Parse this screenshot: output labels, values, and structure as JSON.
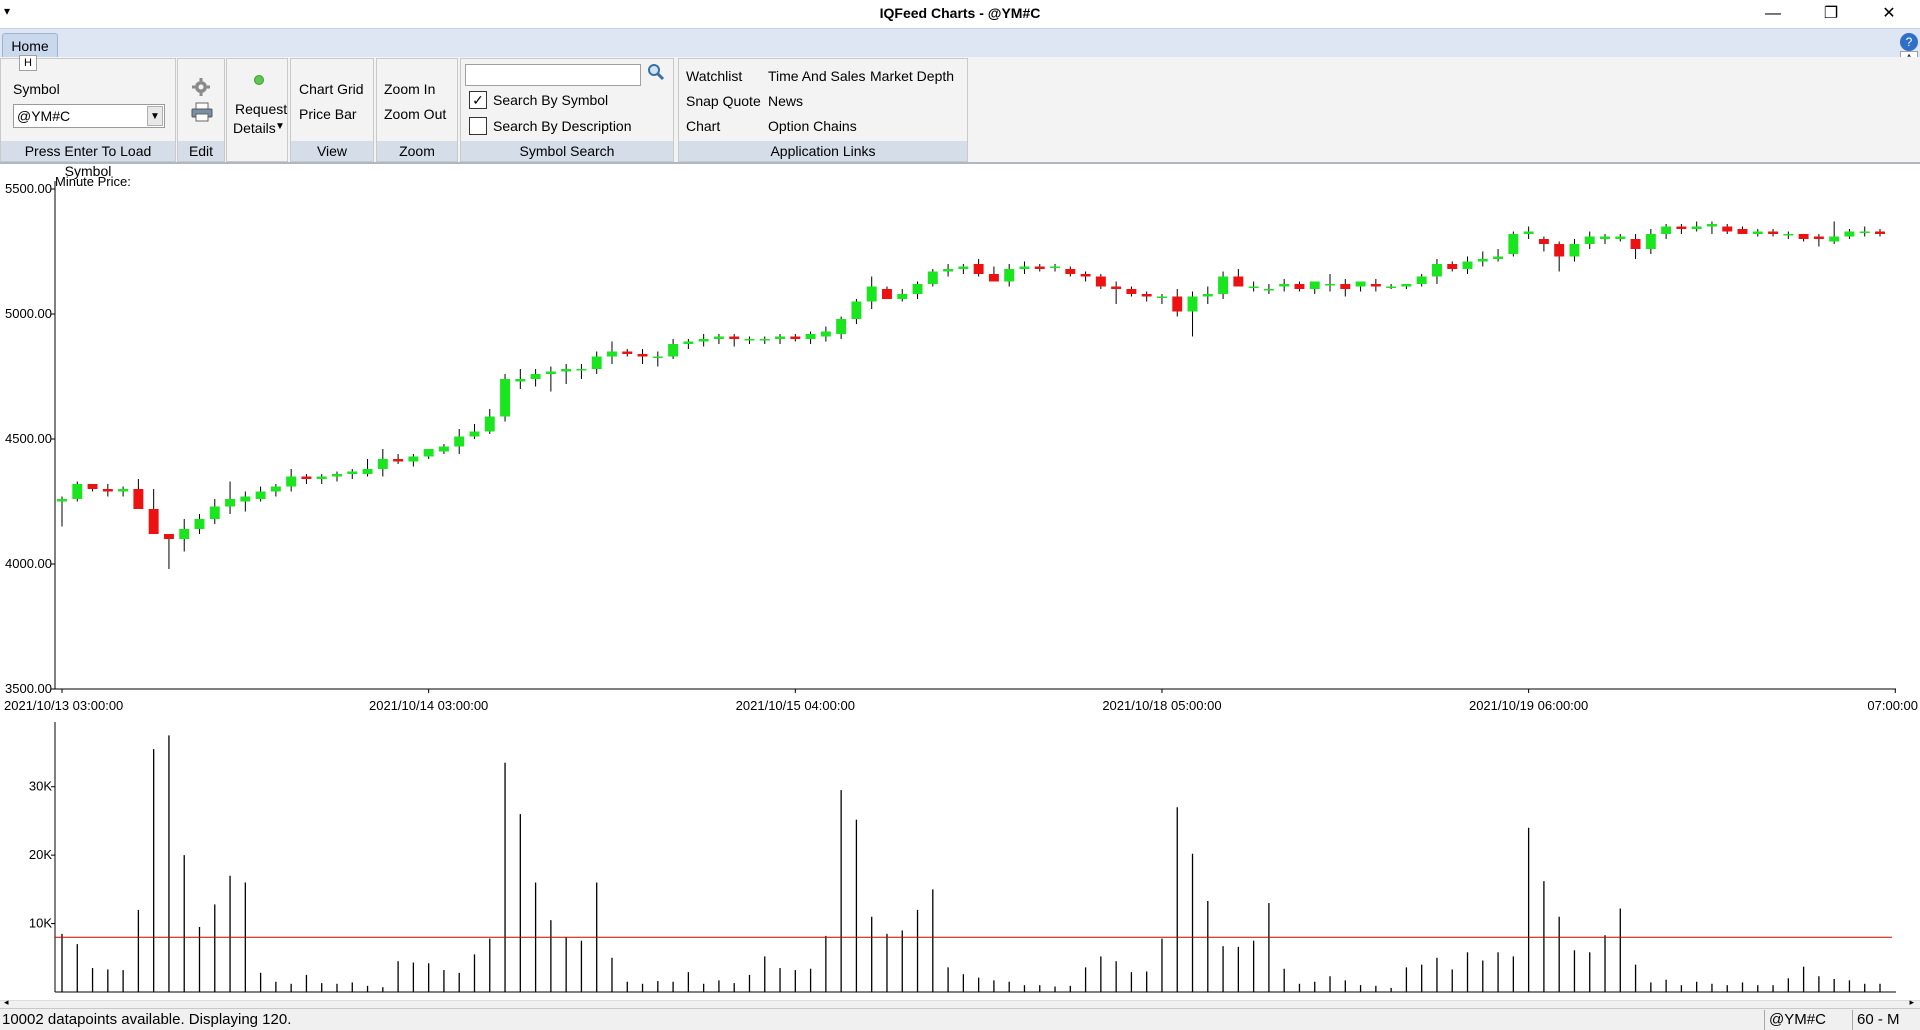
{
  "window": {
    "title": "IQFeed Charts - @YM#C",
    "sysmenu_glyph": "▾",
    "minimize_glyph": "—",
    "maximize_glyph": "❐",
    "close_glyph": "✕"
  },
  "tabs": {
    "home_label": "Home",
    "help_glyph": "?",
    "shortcut_a": "A"
  },
  "ribbon": {
    "symbol_group": {
      "key_tip": "H",
      "label": "Symbol",
      "value": "@YM#C",
      "caption": "Press Enter To Load Symbol"
    },
    "edit_group": {
      "caption": "Edit",
      "settings_icon": "gear-icon",
      "print_icon": "printer-icon"
    },
    "request_group": {
      "line1": "Request",
      "line2": "Details"
    },
    "view_group": {
      "chart_grid": "Chart Grid",
      "price_bar": "Price Bar",
      "caption": "View"
    },
    "zoom_group": {
      "zoom_in": "Zoom In",
      "zoom_out": "Zoom Out",
      "caption": "Zoom"
    },
    "search_group": {
      "search_value": "",
      "by_symbol": "Search By Symbol",
      "by_symbol_checked": true,
      "by_description": "Search By Description",
      "by_description_checked": false,
      "caption": "Symbol Search"
    },
    "links_group": {
      "watchlist": "Watchlist",
      "time_and_sales": "Time And Sales",
      "market_depth": "Market Depth",
      "snap_quote": "Snap Quote",
      "news": "News",
      "chart": "Chart",
      "option_chains": "Option Chains",
      "caption": "Application Links"
    }
  },
  "colors": {
    "up": "#19e61e",
    "down": "#ee1111",
    "avg_line": "#cc0000"
  },
  "chart_data": [
    {
      "type": "candlestick",
      "title": "Minute Price:",
      "y_ticks": [
        "5500.00",
        "5000.00",
        "4500.00",
        "4000.00",
        "3500.00"
      ],
      "ylim": [
        3500,
        5500
      ],
      "x_tick_labels": [
        "2021/10/13 03:00:00",
        "2021/10/14 03:00:00",
        "2021/10/15 04:00:00",
        "2021/10/18 05:00:00",
        "2021/10/19 06:00:00",
        "07:00:00"
      ],
      "x_tick_index": [
        0,
        24,
        48,
        72,
        96,
        120
      ],
      "ohlc": [
        [
          4250,
          4270,
          4150,
          4260
        ],
        [
          4260,
          4330,
          4250,
          4320
        ],
        [
          4320,
          4320,
          4290,
          4300
        ],
        [
          4300,
          4320,
          4270,
          4290
        ],
        [
          4290,
          4310,
          4270,
          4300
        ],
        [
          4300,
          4340,
          4230,
          4220
        ],
        [
          4220,
          4300,
          4120,
          4120
        ],
        [
          4120,
          4120,
          3980,
          4100
        ],
        [
          4100,
          4180,
          4050,
          4140
        ],
        [
          4140,
          4200,
          4120,
          4180
        ],
        [
          4180,
          4260,
          4160,
          4230
        ],
        [
          4230,
          4330,
          4200,
          4260
        ],
        [
          4250,
          4290,
          4210,
          4270
        ],
        [
          4260,
          4310,
          4250,
          4290
        ],
        [
          4290,
          4320,
          4270,
          4310
        ],
        [
          4310,
          4380,
          4290,
          4350
        ],
        [
          4350,
          4360,
          4320,
          4340
        ],
        [
          4340,
          4360,
          4320,
          4350
        ],
        [
          4350,
          4370,
          4330,
          4360
        ],
        [
          4360,
          4380,
          4340,
          4370
        ],
        [
          4360,
          4420,
          4350,
          4380
        ],
        [
          4380,
          4460,
          4350,
          4420
        ],
        [
          4420,
          4440,
          4400,
          4410
        ],
        [
          4410,
          4440,
          4390,
          4430
        ],
        [
          4430,
          4460,
          4420,
          4460
        ],
        [
          4450,
          4480,
          4440,
          4470
        ],
        [
          4470,
          4540,
          4440,
          4510
        ],
        [
          4510,
          4560,
          4500,
          4530
        ],
        [
          4530,
          4620,
          4520,
          4590
        ],
        [
          4590,
          4760,
          4570,
          4740
        ],
        [
          4730,
          4780,
          4700,
          4740
        ],
        [
          4740,
          4780,
          4710,
          4760
        ],
        [
          4760,
          4790,
          4690,
          4770
        ],
        [
          4770,
          4800,
          4720,
          4780
        ],
        [
          4780,
          4800,
          4740,
          4780
        ],
        [
          4780,
          4850,
          4760,
          4830
        ],
        [
          4830,
          4890,
          4800,
          4850
        ],
        [
          4850,
          4860,
          4830,
          4840
        ],
        [
          4840,
          4860,
          4800,
          4830
        ],
        [
          4830,
          4850,
          4790,
          4830
        ],
        [
          4830,
          4900,
          4820,
          4880
        ],
        [
          4880,
          4900,
          4860,
          4890
        ],
        [
          4890,
          4920,
          4870,
          4900
        ],
        [
          4900,
          4920,
          4880,
          4910
        ],
        [
          4910,
          4920,
          4870,
          4900
        ],
        [
          4900,
          4910,
          4880,
          4900
        ],
        [
          4900,
          4910,
          4880,
          4900
        ],
        [
          4900,
          4920,
          4880,
          4910
        ],
        [
          4910,
          4920,
          4890,
          4900
        ],
        [
          4900,
          4930,
          4880,
          4920
        ],
        [
          4910,
          4950,
          4890,
          4930
        ],
        [
          4920,
          4990,
          4900,
          4980
        ],
        [
          4980,
          5060,
          4960,
          5050
        ],
        [
          5050,
          5150,
          5020,
          5110
        ],
        [
          5100,
          5110,
          5060,
          5060
        ],
        [
          5060,
          5100,
          5050,
          5080
        ],
        [
          5080,
          5130,
          5060,
          5120
        ],
        [
          5120,
          5180,
          5110,
          5170
        ],
        [
          5170,
          5200,
          5150,
          5180
        ],
        [
          5180,
          5200,
          5160,
          5190
        ],
        [
          5200,
          5220,
          5150,
          5160
        ],
        [
          5160,
          5190,
          5130,
          5130
        ],
        [
          5130,
          5200,
          5110,
          5180
        ],
        [
          5180,
          5210,
          5160,
          5190
        ],
        [
          5190,
          5200,
          5170,
          5180
        ],
        [
          5190,
          5200,
          5170,
          5190
        ],
        [
          5180,
          5190,
          5150,
          5160
        ],
        [
          5160,
          5170,
          5130,
          5150
        ],
        [
          5150,
          5160,
          5100,
          5110
        ],
        [
          5110,
          5130,
          5040,
          5100
        ],
        [
          5100,
          5110,
          5070,
          5080
        ],
        [
          5080,
          5090,
          5050,
          5070
        ],
        [
          5070,
          5080,
          5040,
          5070
        ],
        [
          5070,
          5100,
          4990,
          5010
        ],
        [
          5010,
          5090,
          4910,
          5070
        ],
        [
          5070,
          5110,
          5040,
          5080
        ],
        [
          5080,
          5170,
          5060,
          5150
        ],
        [
          5150,
          5180,
          5120,
          5110
        ],
        [
          5110,
          5130,
          5090,
          5110
        ],
        [
          5100,
          5120,
          5080,
          5100
        ],
        [
          5110,
          5140,
          5090,
          5120
        ],
        [
          5120,
          5130,
          5090,
          5100
        ],
        [
          5100,
          5130,
          5080,
          5130
        ],
        [
          5120,
          5160,
          5090,
          5120
        ],
        [
          5120,
          5140,
          5070,
          5100
        ],
        [
          5110,
          5130,
          5090,
          5130
        ],
        [
          5120,
          5140,
          5090,
          5110
        ],
        [
          5110,
          5120,
          5100,
          5110
        ],
        [
          5110,
          5120,
          5100,
          5120
        ],
        [
          5120,
          5160,
          5110,
          5150
        ],
        [
          5150,
          5220,
          5120,
          5200
        ],
        [
          5200,
          5210,
          5170,
          5180
        ],
        [
          5180,
          5230,
          5160,
          5210
        ],
        [
          5210,
          5250,
          5190,
          5220
        ],
        [
          5220,
          5260,
          5210,
          5230
        ],
        [
          5240,
          5330,
          5230,
          5320
        ],
        [
          5320,
          5350,
          5300,
          5330
        ],
        [
          5300,
          5310,
          5250,
          5280
        ],
        [
          5280,
          5290,
          5170,
          5230
        ],
        [
          5230,
          5300,
          5210,
          5280
        ],
        [
          5280,
          5330,
          5260,
          5310
        ],
        [
          5300,
          5320,
          5280,
          5310
        ],
        [
          5300,
          5320,
          5290,
          5310
        ],
        [
          5300,
          5320,
          5220,
          5260
        ],
        [
          5260,
          5340,
          5240,
          5320
        ],
        [
          5320,
          5360,
          5300,
          5350
        ],
        [
          5350,
          5360,
          5320,
          5340
        ],
        [
          5340,
          5370,
          5330,
          5350
        ],
        [
          5350,
          5370,
          5320,
          5360
        ],
        [
          5350,
          5360,
          5320,
          5330
        ],
        [
          5340,
          5350,
          5320,
          5320
        ],
        [
          5320,
          5340,
          5310,
          5330
        ],
        [
          5330,
          5340,
          5310,
          5320
        ],
        [
          5320,
          5330,
          5300,
          5320
        ],
        [
          5320,
          5320,
          5290,
          5300
        ],
        [
          5310,
          5320,
          5270,
          5300
        ],
        [
          5290,
          5370,
          5280,
          5310
        ],
        [
          5310,
          5340,
          5300,
          5330
        ],
        [
          5330,
          5350,
          5310,
          5330
        ],
        [
          5330,
          5340,
          5310,
          5320
        ]
      ]
    },
    {
      "type": "bar",
      "title": "",
      "y_ticks": [
        "30K",
        "20K",
        "10K"
      ],
      "ylim": [
        0,
        38000
      ],
      "average_line": 8000,
      "values": [
        8500,
        7000,
        3500,
        3300,
        3200,
        12000,
        35500,
        37500,
        20000,
        9500,
        12800,
        17000,
        16000,
        2800,
        1500,
        1200,
        2500,
        1300,
        1200,
        1400,
        900,
        700,
        4500,
        4300,
        4200,
        3200,
        2800,
        5500,
        7800,
        33500,
        26000,
        16000,
        10500,
        8000,
        7500,
        16000,
        5000,
        1500,
        1200,
        1600,
        1500,
        2900,
        1200,
        1700,
        1300,
        2500,
        5200,
        3500,
        3200,
        3400,
        8200,
        29500,
        25200,
        11000,
        8500,
        9000,
        12000,
        15000,
        3600,
        2600,
        2100,
        1700,
        1500,
        1000,
        1000,
        800,
        900,
        3600,
        5200,
        4500,
        2900,
        3000,
        7800,
        27000,
        20200,
        13300,
        6700,
        6600,
        7500,
        13000,
        3400,
        1200,
        1500,
        2300,
        1700,
        1000,
        900,
        600,
        3600,
        4000,
        5000,
        3300,
        5800,
        4600,
        5800,
        5200,
        24000,
        16200,
        11000,
        6100,
        5800,
        8300,
        12200,
        4000,
        1400,
        1800,
        1000,
        1500,
        1200,
        1000,
        1400,
        1000,
        1000,
        2000,
        3700,
        2300,
        1900,
        1700,
        1200,
        1200
      ]
    }
  ],
  "status": {
    "datapoints_text": "10002 datapoints available.  Displaying 120.",
    "symbol": "@YM#C",
    "interval": "60 - M"
  }
}
